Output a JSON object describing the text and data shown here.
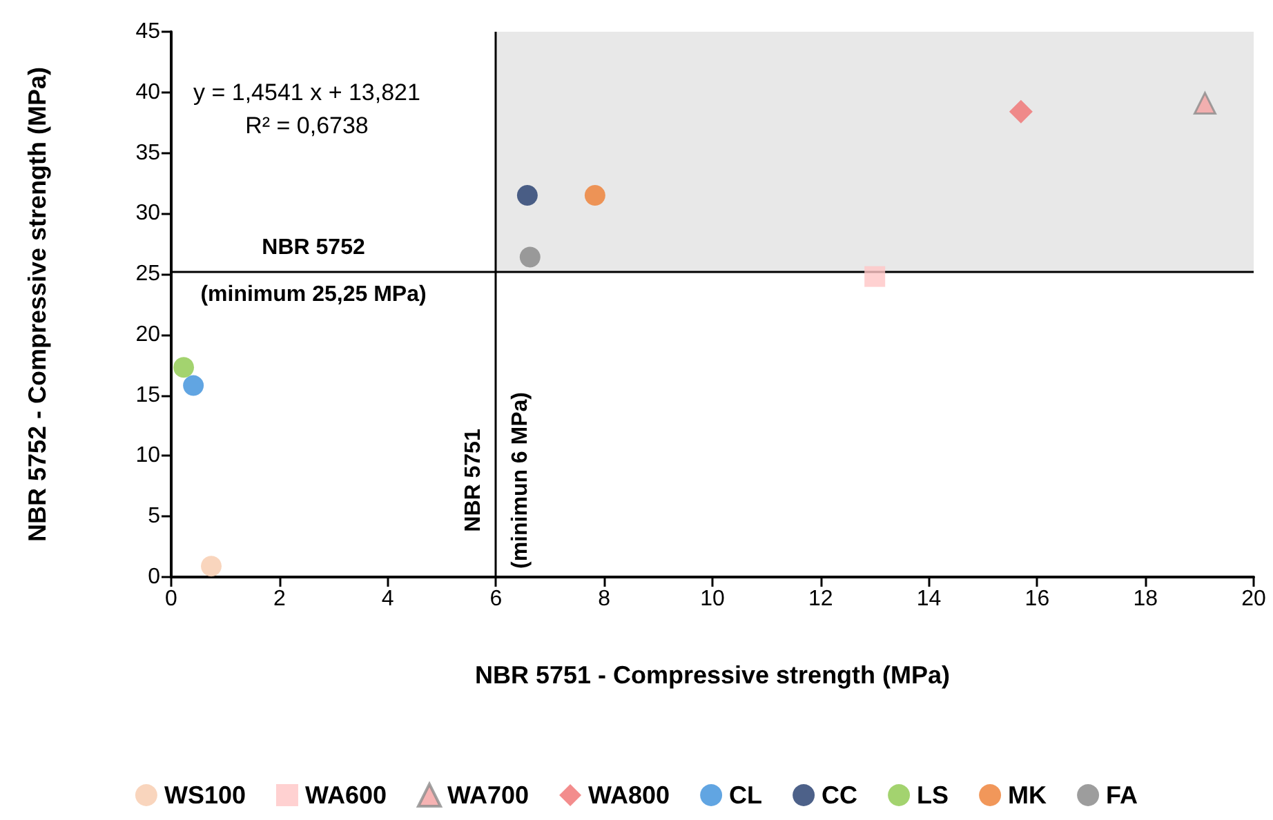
{
  "chart_data": {
    "type": "scatter",
    "xlabel": "NBR 5751 - Compressive strength (MPa)",
    "ylabel": "NBR 5752 - Compressive strength (MPa)",
    "xlim": [
      0,
      20
    ],
    "xticks": [
      0,
      2,
      4,
      6,
      8,
      10,
      12,
      14,
      16,
      18,
      20
    ],
    "ylim": [
      0,
      45
    ],
    "yticks": [
      0,
      5,
      10,
      15,
      20,
      25,
      30,
      35,
      40,
      45
    ],
    "grid": false,
    "legend": "bottom",
    "series": [
      {
        "name": "WS100",
        "color": "#f8cbad",
        "marker": "circle",
        "x": [
          0.74
        ],
        "values": [
          0.9
        ]
      },
      {
        "name": "WA600",
        "color": "#ffc5c5",
        "marker": "square",
        "x": [
          13.0
        ],
        "values": [
          24.8
        ]
      },
      {
        "name": "WA700",
        "color": "#f4a0a0",
        "marker": "triangle",
        "x": [
          19.1
        ],
        "values": [
          39.1
        ]
      },
      {
        "name": "WA800",
        "color": "#f07070",
        "marker": "diamond",
        "x": [
          15.7
        ],
        "values": [
          38.4
        ]
      },
      {
        "name": "CL",
        "color": "#3a8edb",
        "marker": "circle",
        "x": [
          0.41
        ],
        "values": [
          15.8
        ]
      },
      {
        "name": "CC",
        "color": "#213a6b",
        "marker": "circle",
        "x": [
          6.58
        ],
        "values": [
          31.5
        ]
      },
      {
        "name": "LS",
        "color": "#8cc84b",
        "marker": "circle",
        "x": [
          0.23
        ],
        "values": [
          17.3
        ]
      },
      {
        "name": "MK",
        "color": "#ed7d31",
        "marker": "circle",
        "x": [
          7.83
        ],
        "values": [
          31.5
        ]
      },
      {
        "name": "FA",
        "color": "#858585",
        "marker": "circle",
        "x": [
          6.63
        ],
        "values": [
          26.4
        ]
      }
    ],
    "ref_lines": [
      {
        "axis": "y",
        "value": 25.25,
        "label": "NBR 5752\n(minimum 25,25 MPa)",
        "color": "#000000"
      },
      {
        "axis": "x",
        "value": 6,
        "label": "NBR 5751\n(minimun 6 MPa)",
        "color": "#000000"
      }
    ],
    "bands": [
      {
        "axis": "x",
        "from": 6,
        "to": 20,
        "color": "#e8e8e8"
      }
    ],
    "annotations": [
      "y = 1,4541 x + 13,821\nR² = 0,6738"
    ]
  }
}
